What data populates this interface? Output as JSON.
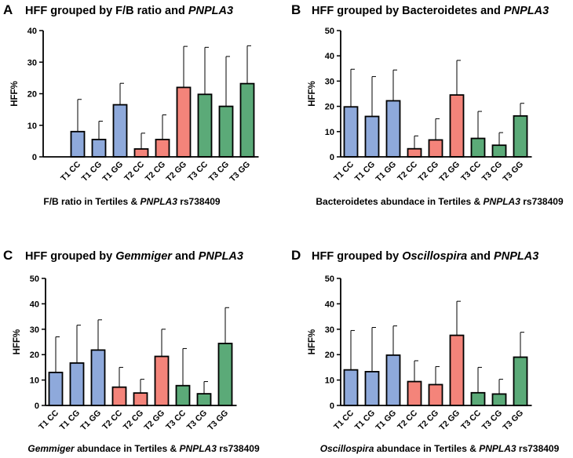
{
  "chart_data": [
    {
      "type": "bar",
      "panel": "A",
      "title": "HFF grouped by F/B ratio and PNPLA3",
      "title_parts": [
        {
          "t": "HFF grouped by F/B ratio and ",
          "i": false
        },
        {
          "t": "PNPLA3",
          "i": true
        }
      ],
      "ylabel": "HFF%",
      "xlabel": "F/B ratio in Tertiles & PNPLA3 rs738409",
      "xlabel_parts": [
        {
          "t": "F/B ratio in Tertiles & ",
          "i": false
        },
        {
          "t": "PNPLA3",
          "i": true
        },
        {
          "t": " rs738409",
          "i": false
        }
      ],
      "ylim": [
        0,
        40
      ],
      "yticks": [
        0,
        10,
        20,
        30,
        40
      ],
      "categories": [
        "T1 CC",
        "T1 CG",
        "T1 GG",
        "T2 CC",
        "T2 CG",
        "T2 GG",
        "T3 CC",
        "T3 CG",
        "T3 GG"
      ],
      "values": [
        8.0,
        5.5,
        16.5,
        2.5,
        5.5,
        22.0,
        19.8,
        16.0,
        23.2
      ],
      "error_upper": [
        18.2,
        11.3,
        23.3,
        7.5,
        13.3,
        35.0,
        34.7,
        31.8,
        35.2
      ]
    },
    {
      "type": "bar",
      "panel": "B",
      "title": "HFF grouped by Bacteroidetes and PNPLA3",
      "title_parts": [
        {
          "t": "HFF grouped by Bacteroidetes and ",
          "i": false
        },
        {
          "t": "PNPLA3",
          "i": true
        }
      ],
      "ylabel": "HFF%",
      "xlabel": "Bacteroidetes abundace in Tertiles & PNPLA3 rs738409",
      "xlabel_parts": [
        {
          "t": "Bacteroidetes abundace in Tertiles & ",
          "i": false
        },
        {
          "t": "PNPLA3",
          "i": true
        },
        {
          "t": " rs738409",
          "i": false
        }
      ],
      "ylim": [
        0,
        50
      ],
      "yticks": [
        0,
        10,
        20,
        30,
        40,
        50
      ],
      "categories": [
        "T1 CC",
        "T1 CG",
        "T1 GG",
        "T2 CC",
        "T2 CG",
        "T2 GG",
        "T3 CC",
        "T3 CG",
        "T3 GG"
      ],
      "values": [
        19.8,
        16.0,
        22.2,
        3.2,
        6.7,
        24.5,
        7.3,
        4.6,
        16.2
      ],
      "error_upper": [
        34.7,
        31.8,
        34.4,
        8.3,
        15.1,
        38.2,
        18.0,
        9.6,
        21.2
      ]
    },
    {
      "type": "bar",
      "panel": "C",
      "title": "HFF grouped by Gemmiger and PNPLA3",
      "title_parts": [
        {
          "t": "HFF grouped by ",
          "i": false
        },
        {
          "t": "Gemmiger",
          "i": true
        },
        {
          "t": " and ",
          "i": false
        },
        {
          "t": "PNPLA3",
          "i": true
        }
      ],
      "ylabel": "HFF%",
      "xlabel": "Gemmiger abundace in Tertiles & PNPLA3 rs738409",
      "xlabel_parts": [
        {
          "t": "Gemmiger",
          "i": true
        },
        {
          "t": " abundace in Tertiles & ",
          "i": false
        },
        {
          "t": "PNPLA3",
          "i": true
        },
        {
          "t": " rs738409",
          "i": false
        }
      ],
      "ylim": [
        0,
        50
      ],
      "yticks": [
        0,
        10,
        20,
        30,
        40,
        50
      ],
      "categories": [
        "T1 CC",
        "T1 CG",
        "T1 GG",
        "T2 CC",
        "T2 CG",
        "T2 GG",
        "T3 CC",
        "T3 CG",
        "T3 GG"
      ],
      "values": [
        13.0,
        16.7,
        21.8,
        7.2,
        4.9,
        19.3,
        7.8,
        4.6,
        24.4
      ],
      "error_upper": [
        27.0,
        31.6,
        33.7,
        15.0,
        10.3,
        30.0,
        22.4,
        9.4,
        38.5
      ]
    },
    {
      "type": "bar",
      "panel": "D",
      "title": "HFF grouped by Oscillospira and PNPLA3",
      "title_parts": [
        {
          "t": "HFF grouped by ",
          "i": false
        },
        {
          "t": "Oscillospira",
          "i": true
        },
        {
          "t": " and ",
          "i": false
        },
        {
          "t": "PNPLA3",
          "i": true
        }
      ],
      "ylabel": "HFF%",
      "xlabel": "Oscillospira abundace in Tertiles & PNPLA3 rs738409",
      "xlabel_parts": [
        {
          "t": "Oscillospira",
          "i": true
        },
        {
          "t": " abundace in Tertiles & ",
          "i": false
        },
        {
          "t": "PNPLA3",
          "i": true
        },
        {
          "t": " rs738409",
          "i": false
        }
      ],
      "ylim": [
        0,
        50
      ],
      "yticks": [
        0,
        10,
        20,
        30,
        40,
        50
      ],
      "categories": [
        "T1 CC",
        "T1 CG",
        "T1 GG",
        "T2 CC",
        "T2 CG",
        "T2 GG",
        "T3 CC",
        "T3 CG",
        "T3 GG"
      ],
      "values": [
        14.0,
        13.3,
        19.8,
        9.4,
        8.2,
        27.6,
        5.0,
        4.5,
        19.0
      ],
      "error_upper": [
        29.5,
        30.7,
        31.3,
        17.6,
        15.3,
        41.0,
        15.0,
        10.3,
        28.8
      ]
    }
  ],
  "colors": {
    "tertile_1": "#8EA9DB",
    "tertile_2": "#F4847A",
    "tertile_3": "#5BAA78",
    "axis": "#000000"
  }
}
